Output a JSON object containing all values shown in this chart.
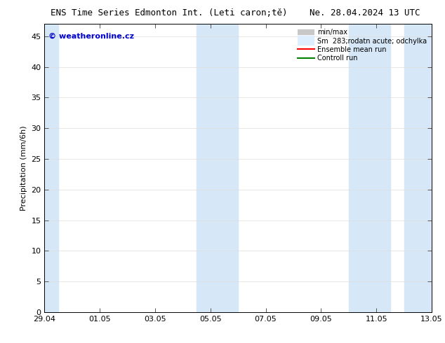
{
  "title_left": "ENS Time Series Edmonton Int. (Leti caron;tě)",
  "title_right": "Ne. 28.04.2024 13 UTC",
  "ylabel": "Precipitation (mm/6h)",
  "watermark": "© weatheronline.cz",
  "ylim": [
    0,
    47
  ],
  "yticks": [
    0,
    5,
    10,
    15,
    20,
    25,
    30,
    35,
    40,
    45
  ],
  "x_start": 0,
  "x_end": 14,
  "xtick_labels": [
    "29.04",
    "01.05",
    "03.05",
    "05.05",
    "07.05",
    "09.05",
    "11.05",
    "13.05"
  ],
  "xtick_positions": [
    0,
    2,
    4,
    6,
    8,
    10,
    12,
    14
  ],
  "band_color": "#d6e8f7",
  "band_regions": [
    [
      0.0,
      0.5
    ],
    [
      5.5,
      7.0
    ],
    [
      11.0,
      12.5
    ],
    [
      13.0,
      14.0
    ]
  ],
  "bg_color": "#ffffff",
  "legend_minmax_color": "#c8c8c8",
  "legend_sm_color": "#ddeeff",
  "legend_ensemble_color": "#ff0000",
  "legend_control_color": "#008000",
  "spine_color": "#000000",
  "tick_color": "#000000",
  "font_size": 8,
  "title_font_size": 9,
  "watermark_color": "#0000cc"
}
